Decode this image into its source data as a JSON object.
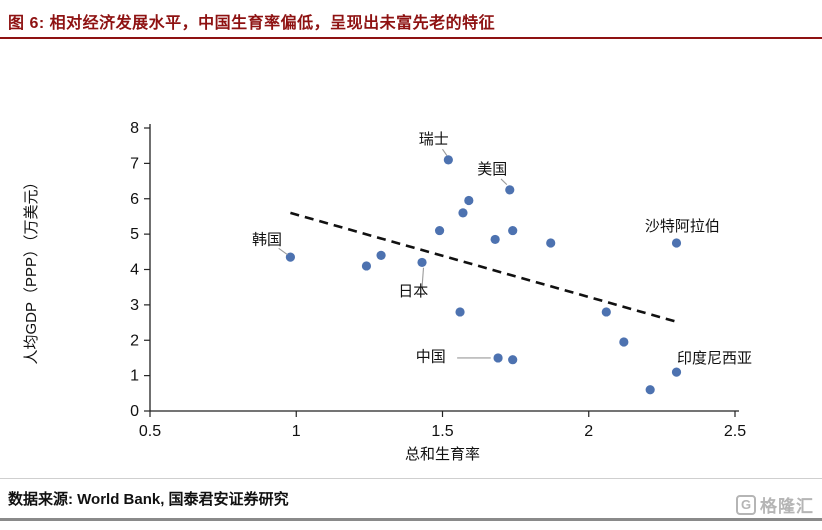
{
  "header": {
    "title": "图 6: 相对经济发展水平，中国生育率偏低，呈现出未富先老的特征",
    "accent_color": "#8e1212"
  },
  "footer": {
    "source": "数据来源: World Bank, 国泰君安证券研究"
  },
  "watermark": {
    "logo_letter": "G",
    "logo_text": "格隆汇"
  },
  "chart_data": {
    "type": "scatter",
    "title": "",
    "xlabel": "总和生育率",
    "ylabel": "人均GDP（PPP）（万美元）",
    "xlim": [
      0.5,
      2.5
    ],
    "ylim": [
      0,
      8
    ],
    "xticks": [
      0.5,
      1,
      1.5,
      2,
      2.5
    ],
    "yticks": [
      0,
      1,
      2,
      3,
      4,
      5,
      6,
      7,
      8
    ],
    "grid": false,
    "legend": "none",
    "point_color": "#4d72b0",
    "trend_color": "#111111",
    "points": [
      {
        "x": 0.98,
        "y": 4.35,
        "label": "韩国"
      },
      {
        "x": 1.24,
        "y": 4.1
      },
      {
        "x": 1.29,
        "y": 4.4
      },
      {
        "x": 1.43,
        "y": 4.2,
        "label": "日本"
      },
      {
        "x": 1.49,
        "y": 5.1
      },
      {
        "x": 1.52,
        "y": 7.1,
        "label": "瑞士"
      },
      {
        "x": 1.57,
        "y": 5.6
      },
      {
        "x": 1.59,
        "y": 5.95
      },
      {
        "x": 1.56,
        "y": 2.8
      },
      {
        "x": 1.73,
        "y": 6.25,
        "label": "美国"
      },
      {
        "x": 1.74,
        "y": 5.1
      },
      {
        "x": 1.68,
        "y": 4.85
      },
      {
        "x": 1.87,
        "y": 4.75
      },
      {
        "x": 1.69,
        "y": 1.5,
        "label": "中国"
      },
      {
        "x": 1.74,
        "y": 1.45
      },
      {
        "x": 2.06,
        "y": 2.8
      },
      {
        "x": 2.12,
        "y": 1.95
      },
      {
        "x": 2.21,
        "y": 0.6
      },
      {
        "x": 2.3,
        "y": 4.75,
        "label": "沙特阿拉伯"
      },
      {
        "x": 2.3,
        "y": 1.1,
        "label": "印度尼西亚"
      }
    ],
    "trendline": {
      "x1": 0.98,
      "y1": 5.6,
      "x2": 2.31,
      "y2": 2.5,
      "style": "dashed"
    },
    "annotations": [
      {
        "text": "瑞士",
        "x": 1.47,
        "y": 7.55,
        "leader": {
          "x1": 1.5,
          "y1": 7.4,
          "x2": 1.515,
          "y2": 7.22
        }
      },
      {
        "text": "美国",
        "x": 1.67,
        "y": 6.7,
        "leader": {
          "x1": 1.7,
          "y1": 6.56,
          "x2": 1.72,
          "y2": 6.4
        }
      },
      {
        "text": "韩国",
        "x": 0.9,
        "y": 4.7,
        "leader": {
          "x1": 0.94,
          "y1": 4.6,
          "x2": 0.97,
          "y2": 4.42
        }
      },
      {
        "text": "日本",
        "x": 1.4,
        "y": 3.25,
        "leader": {
          "x1": 1.43,
          "y1": 3.48,
          "x2": 1.435,
          "y2": 4.05
        }
      },
      {
        "text": "中国",
        "x": 1.46,
        "y": 1.4,
        "leader": {
          "x1": 1.55,
          "y1": 1.5,
          "x2": 1.665,
          "y2": 1.5
        }
      },
      {
        "text": "沙特阿拉伯",
        "x": 2.32,
        "y": 5.09
      },
      {
        "text": "印度尼西亚",
        "x": 2.43,
        "y": 1.36
      }
    ]
  }
}
